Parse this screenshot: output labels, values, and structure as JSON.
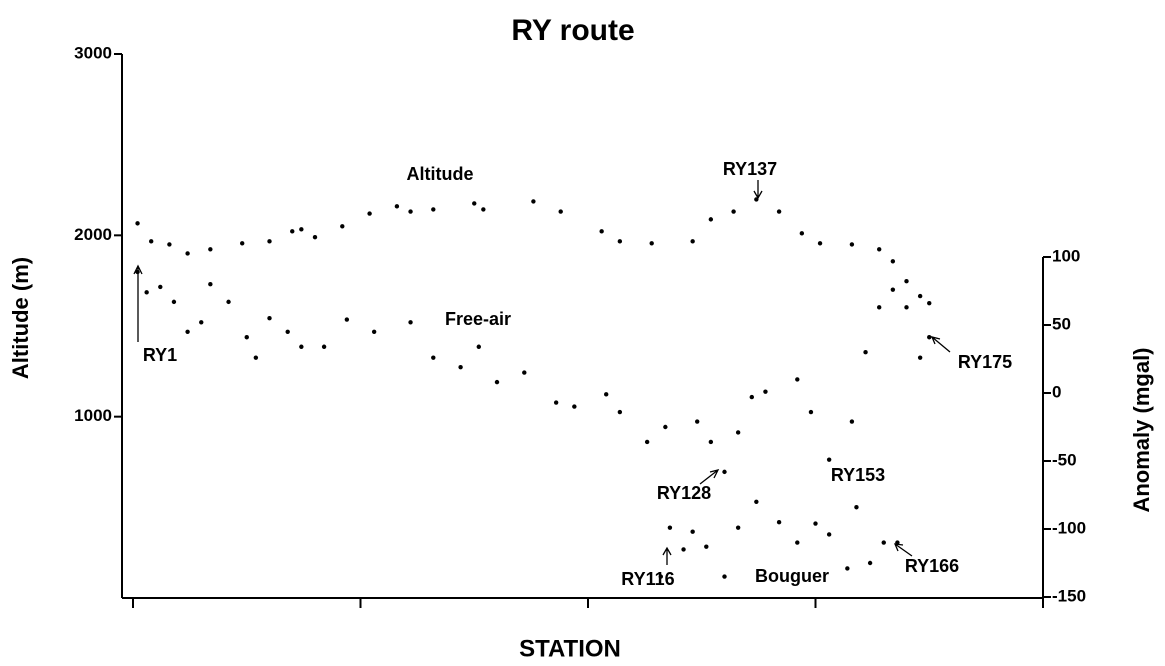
{
  "chart_data": {
    "type": "line",
    "title": "RY route",
    "xlabel": "STATION",
    "ylabel": "Altitude (m)",
    "y2label": "Anomaly (mgal)",
    "xlim": [
      0,
      200
    ],
    "xticks": [
      0,
      50,
      100,
      150,
      200
    ],
    "ylim": [
      0,
      3000
    ],
    "yticks": [
      1000,
      2000,
      3000
    ],
    "y2lim": [
      -150,
      100
    ],
    "y2ticks": [
      100,
      50,
      0,
      -50,
      -100,
      -150
    ],
    "marker": "dot",
    "series": [
      {
        "name": "Altitude",
        "color": "#000000",
        "axis": "y",
        "x": [
          1,
          4,
          8,
          12,
          17,
          24,
          30,
          35,
          37,
          40,
          46,
          52,
          58,
          61,
          66,
          75,
          77,
          88,
          94,
          103,
          107,
          114,
          123,
          127,
          132,
          137,
          142,
          147,
          151,
          158,
          164,
          167,
          170,
          173,
          175
        ],
        "values": [
          2066,
          1967,
          1950,
          1900,
          1923,
          1956,
          1967,
          2022,
          2033,
          1990,
          2050,
          2120,
          2160,
          2131,
          2143,
          2176,
          2143,
          2187,
          2131,
          2022,
          1967,
          1956,
          1967,
          2088,
          2131,
          2198,
          2131,
          2011,
          1956,
          1950,
          1923,
          1857,
          1747,
          1665,
          1626
        ]
      },
      {
        "name": "Free-air",
        "color": "#000000",
        "axis": "y2",
        "x": [
          1,
          3,
          6,
          9,
          12,
          15,
          17,
          21,
          25,
          27,
          30,
          34,
          37,
          42,
          47,
          53,
          61,
          66,
          72,
          76,
          80,
          86,
          93,
          97,
          104,
          107,
          113,
          117,
          124,
          127,
          130,
          133,
          136,
          139,
          146,
          149,
          153,
          158,
          161,
          164,
          167,
          170,
          173,
          175
        ],
        "values": [
          89,
          74,
          78,
          67,
          45,
          52,
          80,
          67,
          41,
          26,
          55,
          45,
          34,
          34,
          54,
          45,
          52,
          26,
          19,
          34,
          8,
          15,
          -7,
          -10,
          -1,
          -14,
          -36,
          -25,
          -21,
          -36,
          -58,
          -29,
          -3,
          1,
          10,
          -14,
          -49,
          -21,
          30,
          63,
          76,
          63,
          26,
          41
        ]
      },
      {
        "name": "Bouguer",
        "color": "#000000",
        "axis": "y2",
        "x": [
          116,
          118,
          121,
          123,
          126,
          130,
          133,
          137,
          142,
          146,
          150,
          153,
          157,
          159,
          162,
          165,
          168
        ],
        "values": [
          -135,
          -99,
          -115,
          -102,
          -113,
          -135,
          -99,
          -80,
          -95,
          -110,
          -96,
          -104,
          -129,
          -84,
          -125,
          -110,
          -110
        ]
      }
    ],
    "annotations": [
      "RY1",
      "RY137",
      "RY175",
      "RY128",
      "RY153",
      "RY116",
      "RY166"
    ]
  }
}
